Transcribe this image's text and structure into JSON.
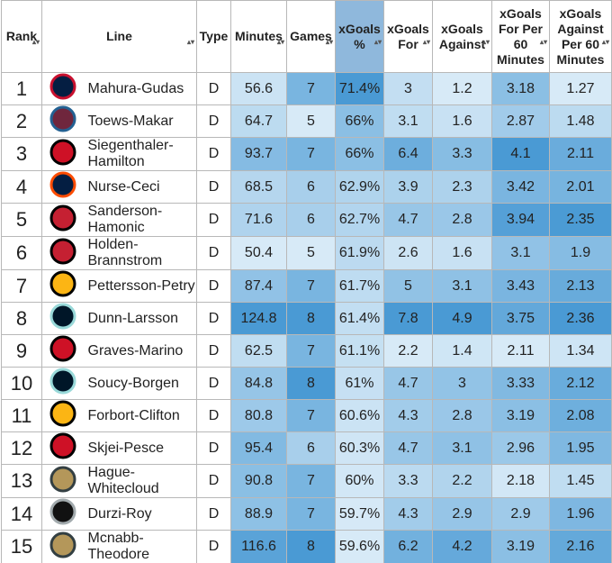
{
  "table": {
    "headers": [
      "Rank",
      "Line",
      "Type",
      "Minutes",
      "Games",
      "xGoals %",
      "xGoals For",
      "xGoals Against",
      "xGoals For Per 60 Minutes",
      "xGoals Against Per 60 Minutes"
    ],
    "rows": [
      [
        1,
        "Mahura-Gudas",
        "D",
        56.6,
        7,
        "71.4%",
        3,
        1.2,
        3.18,
        1.27
      ],
      [
        2,
        "Toews-Makar",
        "D",
        64.7,
        5,
        "66%",
        3.1,
        1.6,
        2.87,
        1.48
      ],
      [
        3,
        "Siegenthaler-Hamilton",
        "D",
        93.7,
        7,
        "66%",
        6.4,
        3.3,
        4.1,
        2.11
      ],
      [
        4,
        "Nurse-Ceci",
        "D",
        68.5,
        6,
        "62.9%",
        3.9,
        2.3,
        3.42,
        2.01
      ],
      [
        5,
        "Sanderson-Hamonic",
        "D",
        71.6,
        6,
        "62.7%",
        4.7,
        2.8,
        3.94,
        2.35
      ],
      [
        6,
        "Holden-Brannstrom",
        "D",
        50.4,
        5,
        "61.9%",
        2.6,
        1.6,
        3.1,
        1.9
      ],
      [
        7,
        "Pettersson-Petry",
        "D",
        87.4,
        7,
        "61.7%",
        5,
        3.1,
        3.43,
        2.13
      ],
      [
        8,
        "Dunn-Larsson",
        "D",
        124.8,
        8,
        "61.4%",
        7.8,
        4.9,
        3.75,
        2.36
      ],
      [
        9,
        "Graves-Marino",
        "D",
        62.5,
        7,
        "61.1%",
        2.2,
        1.4,
        2.11,
        1.34
      ],
      [
        10,
        "Soucy-Borgen",
        "D",
        84.8,
        8,
        "61%",
        4.7,
        3,
        3.33,
        2.12
      ],
      [
        11,
        "Forbort-Clifton",
        "D",
        80.8,
        7,
        "60.6%",
        4.3,
        2.8,
        3.19,
        2.08
      ],
      [
        12,
        "Skjei-Pesce",
        "D",
        95.4,
        6,
        "60.3%",
        4.7,
        3.1,
        2.96,
        1.95
      ],
      [
        13,
        "Hague-Whitecloud",
        "D",
        90.8,
        7,
        "60%",
        3.3,
        2.2,
        2.18,
        1.45
      ],
      [
        14,
        "Durzi-Roy",
        "D",
        88.9,
        7,
        "59.7%",
        4.3,
        2.9,
        2.9,
        1.96
      ],
      [
        15,
        "Mcnabb-Theodore",
        "D",
        116.6,
        8,
        "59.6%",
        6.2,
        4.2,
        3.19,
        2.16
      ]
    ]
  }
}
